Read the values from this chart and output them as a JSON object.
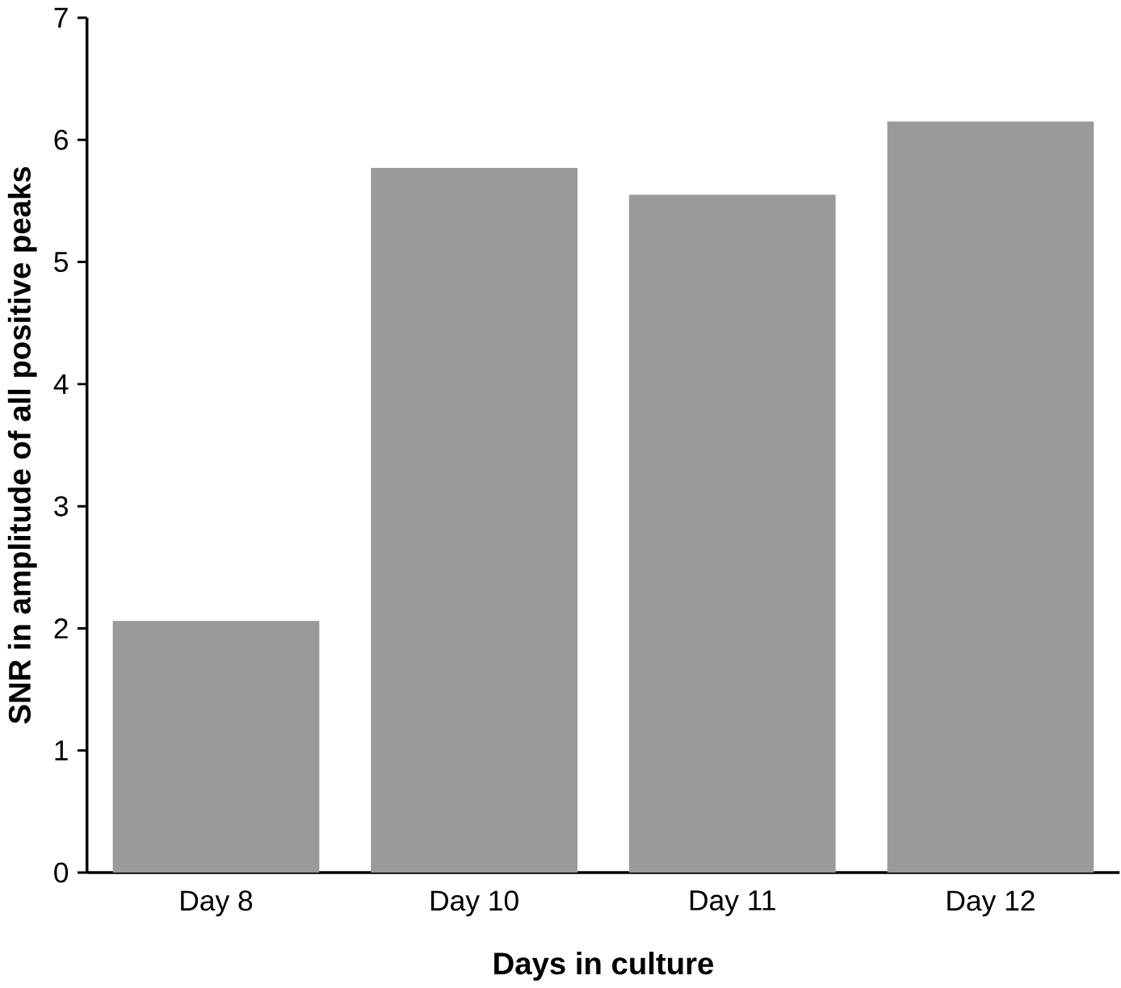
{
  "chart_data": {
    "type": "bar",
    "xlabel": "Days in culture",
    "ylabel": "SNR in amplitude of all positive peaks",
    "categories": [
      "Day 8",
      "Day 10",
      "Day 11",
      "Day 12"
    ],
    "values": [
      2.06,
      5.77,
      5.55,
      6.15
    ],
    "color": "#9a9a9a",
    "ylim": [
      0,
      7
    ],
    "yticks": [
      0,
      1,
      2,
      3,
      4,
      5,
      6,
      7
    ],
    "grid": false
  }
}
